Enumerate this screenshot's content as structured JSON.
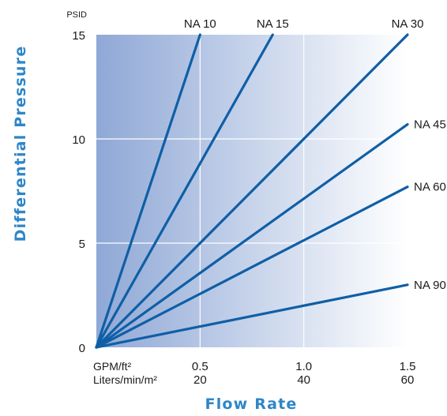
{
  "chart_data": {
    "type": "line",
    "xlabel": "Flow Rate",
    "ylabel": "Differential Pressure",
    "y_unit": "PSID",
    "x_unit_labels": [
      "GPM/ft²",
      "Liters/min/m²"
    ],
    "xlim": [
      0,
      1.5
    ],
    "ylim": [
      0,
      15
    ],
    "x_ticks": [
      {
        "gpm": 0.5,
        "gpm_label": "0.5",
        "lpm_label": "20"
      },
      {
        "gpm": 1.0,
        "gpm_label": "1.0",
        "lpm_label": "40"
      },
      {
        "gpm": 1.5,
        "gpm_label": "1.5",
        "lpm_label": "60"
      }
    ],
    "y_ticks": [
      {
        "value": 0,
        "label": "0"
      },
      {
        "value": 5,
        "label": "5"
      },
      {
        "value": 10,
        "label": "10"
      },
      {
        "value": 15,
        "label": "15"
      }
    ],
    "grid": true,
    "series": [
      {
        "name": "NA 10",
        "x": [
          0,
          0.5
        ],
        "y": [
          0,
          15
        ]
      },
      {
        "name": "NA 15",
        "x": [
          0,
          0.85
        ],
        "y": [
          0,
          15
        ]
      },
      {
        "name": "NA 30",
        "x": [
          0,
          1.5
        ],
        "y": [
          0,
          15
        ]
      },
      {
        "name": "NA 45",
        "x": [
          0,
          1.5
        ],
        "y": [
          0,
          10.7
        ]
      },
      {
        "name": "NA 60",
        "x": [
          0,
          1.5
        ],
        "y": [
          0,
          7.7
        ]
      },
      {
        "name": "NA 90",
        "x": [
          0,
          1.5
        ],
        "y": [
          0,
          3.0
        ]
      }
    ],
    "colors": {
      "line": "#0f5fa6",
      "axis_title": "#2e86c8",
      "gradient_start": "#8fa8d6",
      "gradient_end": "#ffffff",
      "grid": "#ffffff"
    }
  }
}
